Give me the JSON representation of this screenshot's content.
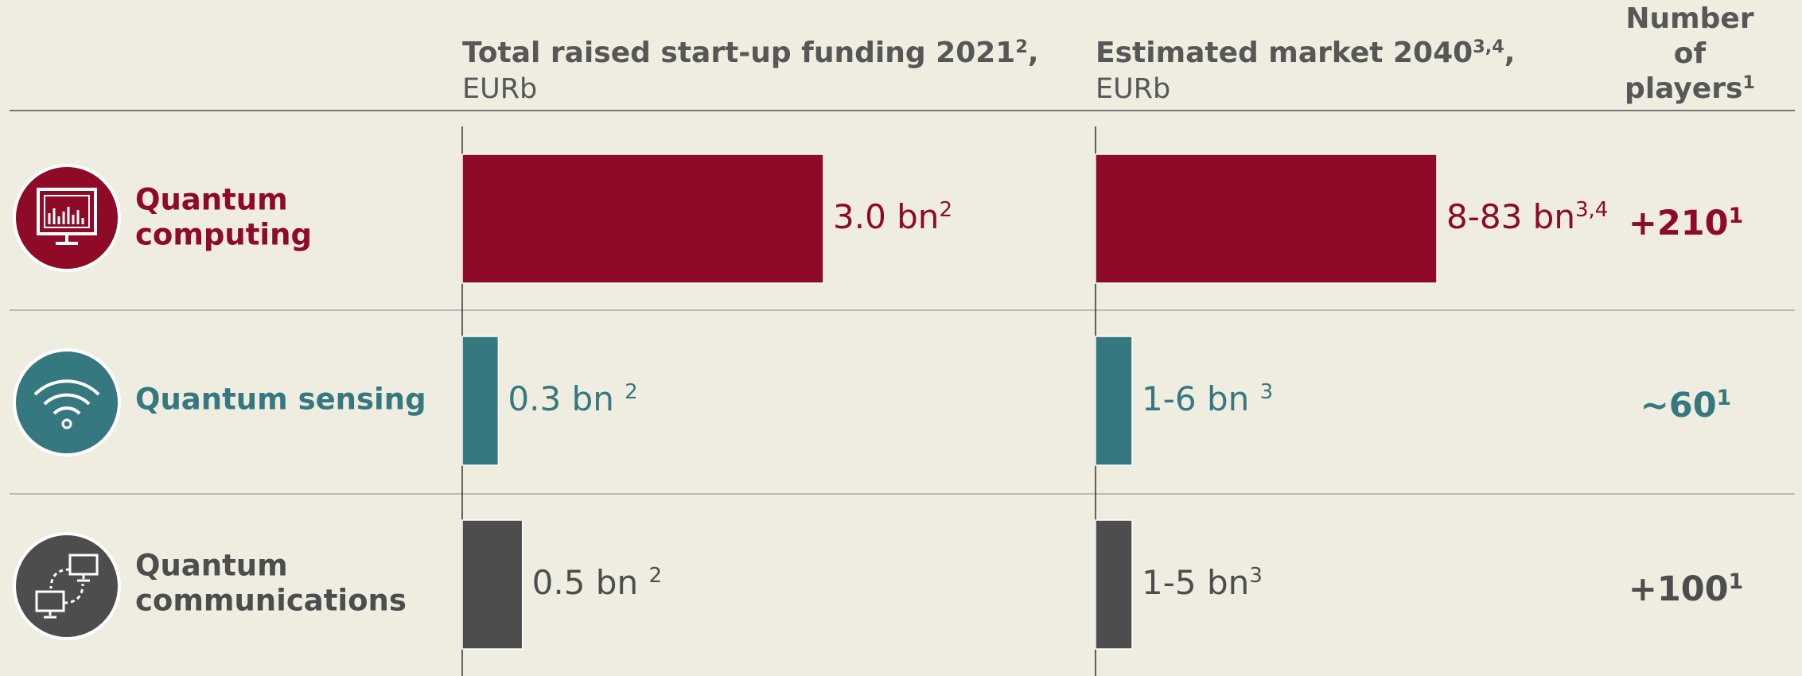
{
  "header": {
    "funding": {
      "title": "Total raised start-up funding 2021",
      "sup": "2",
      "suffix": ",",
      "unit": "EURb"
    },
    "market": {
      "title": "Estimated market 2040",
      "sup": "3,4",
      "suffix": ",",
      "unit": "EURb"
    },
    "players": {
      "lines": [
        "Number",
        "of",
        "players"
      ],
      "sup": "1"
    }
  },
  "rows": [
    {
      "label_lines": [
        "Quantum",
        "computing"
      ],
      "color": "#8e0a26",
      "funding": {
        "value": 3.0,
        "label": "3.0 bn",
        "sup": "2"
      },
      "market": {
        "low": 8,
        "high": 83,
        "label": "8-83 bn",
        "sup": "3,4"
      },
      "players": {
        "label": "+210",
        "sup": "1"
      }
    },
    {
      "label_lines": [
        "Quantum sensing"
      ],
      "color": "#367880",
      "funding": {
        "value": 0.3,
        "label": "0.3 bn ",
        "sup": "2"
      },
      "market": {
        "low": 1,
        "high": 6,
        "label": "1-6 bn ",
        "sup": "3"
      },
      "players": {
        "label": "~60",
        "sup": "1"
      }
    },
    {
      "label_lines": [
        "Quantum",
        "communications"
      ],
      "color": "#4d4d4d",
      "funding": {
        "value": 0.5,
        "label": "0.5 bn ",
        "sup": "2"
      },
      "market": {
        "low": 1,
        "high": 5,
        "label": "1-5 bn",
        "sup": "3"
      },
      "players": {
        "label": "+100",
        "sup": "1"
      }
    }
  ]
}
